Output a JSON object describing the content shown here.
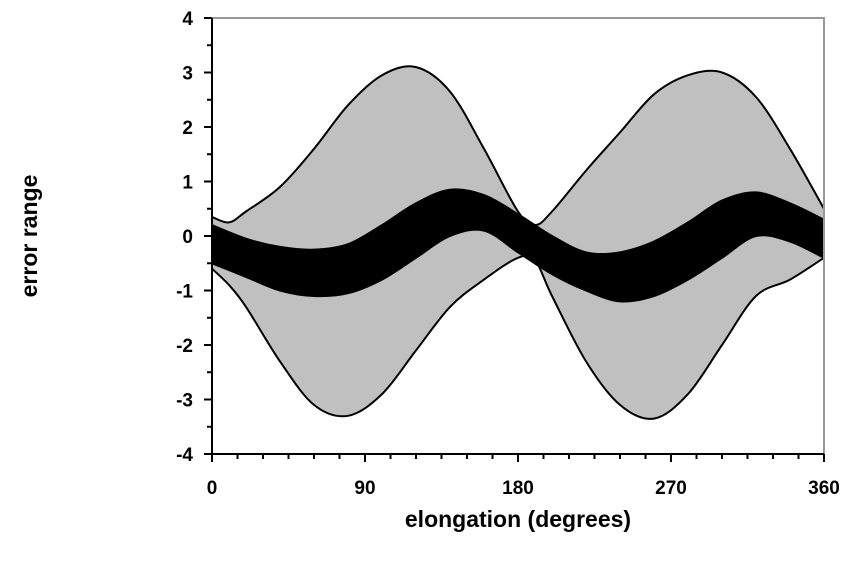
{
  "chart_data": {
    "type": "area",
    "xlabel": "elongation (degrees)",
    "ylabel": "error range",
    "xlim": [
      0,
      360
    ],
    "ylim": [
      -4,
      4
    ],
    "x_ticks": [
      0,
      90,
      180,
      270,
      360
    ],
    "y_ticks": [
      4,
      3,
      2,
      1,
      0,
      -1,
      -2,
      -3,
      -4
    ],
    "x_minor_step": 15,
    "y_minor_step": 0.5,
    "grid": false,
    "legend": "none",
    "series": [
      {
        "fill": "#c0c0c0",
        "x": [
          0,
          10,
          20,
          40,
          60,
          80,
          100,
          120,
          140,
          160,
          180,
          190,
          200,
          220,
          240,
          260,
          280,
          300,
          320,
          340,
          360
        ],
        "upper": [
          0.35,
          0.25,
          0.45,
          0.9,
          1.6,
          2.4,
          2.95,
          3.1,
          2.65,
          1.6,
          0.45,
          0.2,
          0.45,
          1.2,
          1.9,
          2.6,
          2.95,
          3.0,
          2.55,
          1.6,
          0.5
        ],
        "lower": [
          -0.6,
          -0.9,
          -1.3,
          -2.3,
          -3.1,
          -3.3,
          -2.9,
          -2.1,
          -1.3,
          -0.8,
          -0.4,
          -0.45,
          -1.1,
          -2.3,
          -3.1,
          -3.35,
          -2.9,
          -2.0,
          -1.1,
          -0.8,
          -0.4
        ]
      },
      {
        "fill": "#000000",
        "x": [
          0,
          20,
          40,
          60,
          80,
          100,
          120,
          140,
          160,
          180,
          200,
          220,
          240,
          260,
          280,
          300,
          320,
          340,
          360
        ],
        "upper": [
          0.2,
          -0.05,
          -0.2,
          -0.25,
          -0.15,
          0.2,
          0.6,
          0.85,
          0.75,
          0.4,
          0.0,
          -0.3,
          -0.3,
          -0.1,
          0.25,
          0.65,
          0.8,
          0.6,
          0.3
        ],
        "lower": [
          -0.5,
          -0.75,
          -1.0,
          -1.1,
          -1.05,
          -0.8,
          -0.4,
          0.0,
          0.1,
          -0.3,
          -0.7,
          -1.0,
          -1.2,
          -1.1,
          -0.8,
          -0.4,
          0.0,
          -0.1,
          -0.4
        ]
      }
    ]
  }
}
